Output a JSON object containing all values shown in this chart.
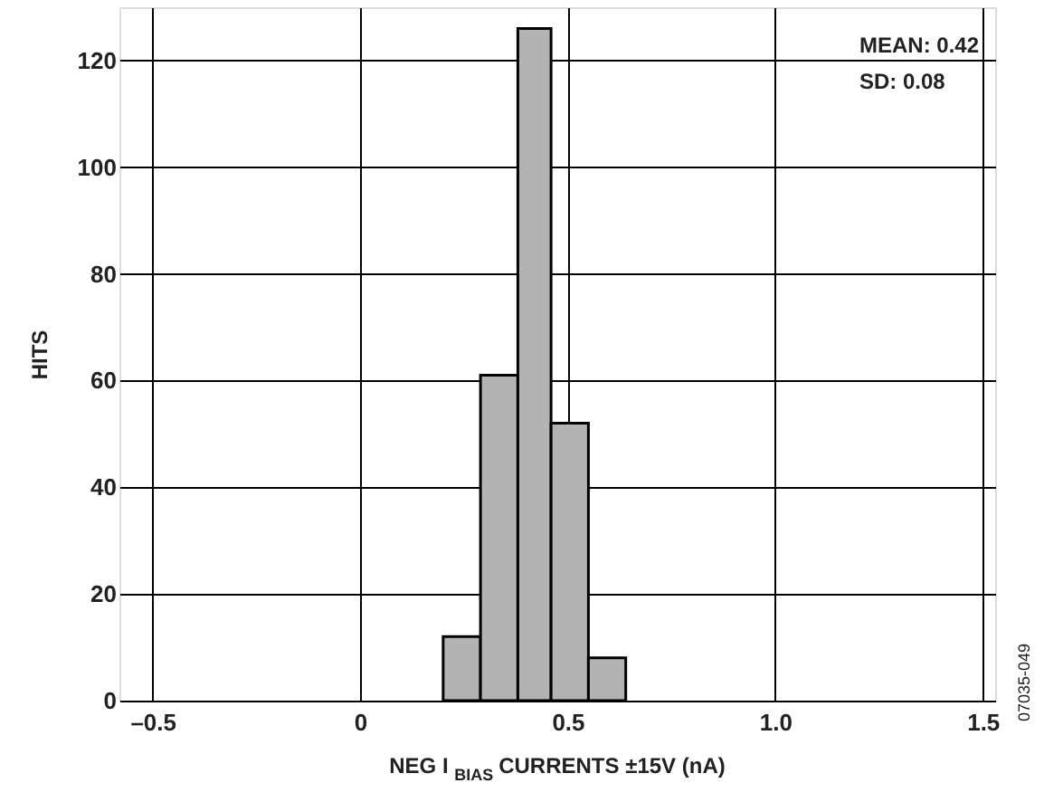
{
  "chart_data": {
    "type": "histogram",
    "xlabel": "NEG I$_{BIAS}$ CURRENTS ±15V (nA)",
    "ylabel": "HITS",
    "bins": [
      0.2,
      0.29,
      0.38,
      0.46,
      0.55,
      0.64
    ],
    "values": [
      12,
      61,
      126,
      52,
      8
    ],
    "color": "#b3b3b3",
    "xlim": [
      -0.58,
      1.53
    ],
    "xticks": [
      {
        "value": -0.5,
        "label": "–0.5"
      },
      0,
      0.5,
      {
        "value": 1,
        "label": "1.0"
      },
      1.5
    ],
    "ylim": [
      0,
      130
    ],
    "yticks": [
      0,
      20,
      40,
      60,
      80,
      100,
      120
    ],
    "grid": true,
    "annotations": [
      "MEAN: 0.42",
      "SD: 0.08",
      "07035-049"
    ]
  }
}
